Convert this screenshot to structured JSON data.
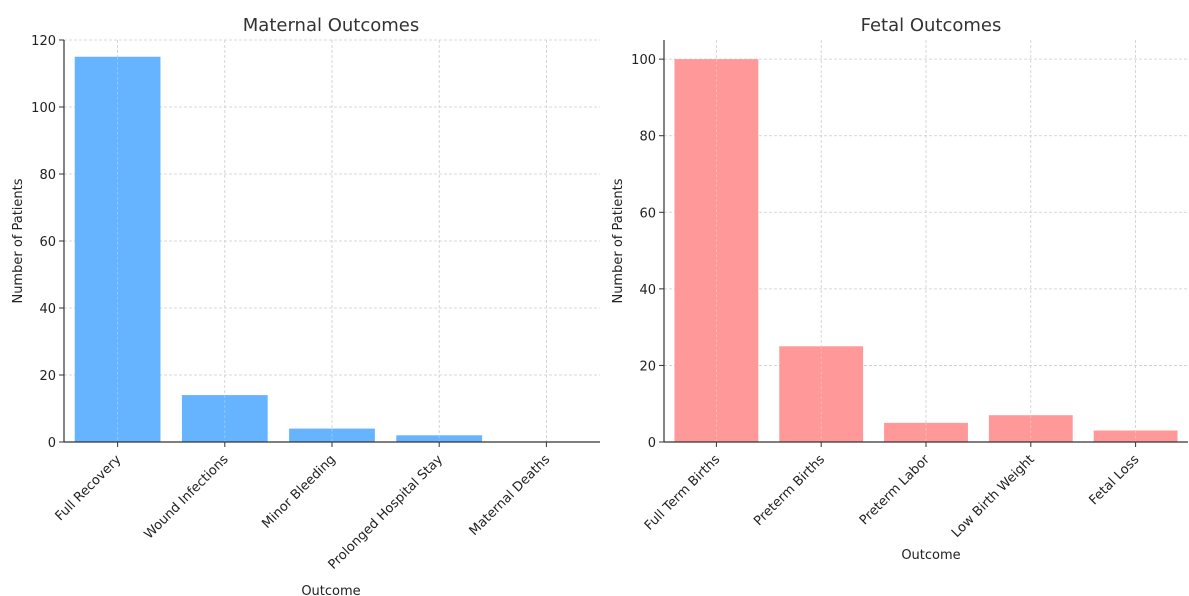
{
  "chart_data": [
    {
      "type": "bar",
      "title": "Maternal Outcomes",
      "xlabel": "Outcome",
      "ylabel": "Number of Patients",
      "categories": [
        "Full Recovery",
        "Wound Infections",
        "Minor Bleeding",
        "Prolonged Hospital Stay",
        "Maternal Deaths"
      ],
      "values": [
        115,
        14,
        4,
        2,
        0
      ],
      "ylim": [
        0,
        120
      ],
      "yticks": [
        0,
        20,
        40,
        60,
        80,
        100,
        120
      ],
      "color": "#66b3ff",
      "grid": true
    },
    {
      "type": "bar",
      "title": "Fetal Outcomes",
      "xlabel": "Outcome",
      "ylabel": "Number of Patients",
      "categories": [
        "Full Term Births",
        "Preterm Births",
        "Preterm Labor",
        "Low Birth Weight",
        "Fetal Loss"
      ],
      "values": [
        100,
        25,
        5,
        7,
        3
      ],
      "ylim": [
        0,
        105
      ],
      "yticks": [
        0,
        20,
        40,
        60,
        80,
        100
      ],
      "color": "#ff9999",
      "grid": true
    }
  ]
}
